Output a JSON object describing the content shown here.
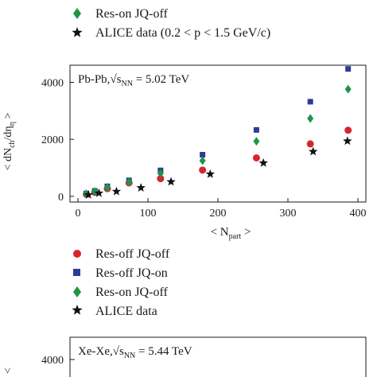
{
  "colors": {
    "res_off_jq_off": "#d7262b",
    "res_off_jq_on": "#2e3c96",
    "res_on_jq_off": "#1e9645",
    "alice": "#111111",
    "axis": "#1a1a1a"
  },
  "top_legend": {
    "items": [
      {
        "label": "Res-on JQ-off",
        "marker": "diamond",
        "color": "#1e9645"
      },
      {
        "label": "ALICE data (0.2 < p < 1.5 GeV/c)",
        "marker": "star",
        "color": "#111111"
      }
    ]
  },
  "panel1": {
    "box_label_system": "Pb-Pb,",
    "box_label_sqrt": "√s",
    "box_label_sub": "NN",
    "box_label_value": " = 5.02 TeV",
    "ylabel_main": "< dN",
    "ylabel_sub1": "ch",
    "ylabel_mid": "/dη",
    "ylabel_sub2": "η",
    "ylabel_end": " >",
    "xlabel_main": "< N",
    "xlabel_sub": "part",
    "xlabel_end": " >"
  },
  "legend2": {
    "items": [
      {
        "label": "Res-off JQ-off",
        "marker": "circle",
        "color": "#d7262b"
      },
      {
        "label": "Res-off JQ-on",
        "marker": "square",
        "color": "#2e3c96"
      },
      {
        "label": "Res-on JQ-off",
        "marker": "diamond",
        "color": "#1e9645"
      },
      {
        "label": "ALICE data",
        "marker": "star",
        "color": "#111111"
      }
    ]
  },
  "panel2": {
    "box_label_system": "Xe-Xe,",
    "box_label_sqrt": "√s",
    "box_label_sub": "NN",
    "box_label_value": " = 5.44 TeV",
    "ytick_label": "4000"
  },
  "chart_data": [
    {
      "type": "scatter",
      "title": "Pb-Pb, √sNN = 5.02 TeV",
      "xlabel": "< Npart >",
      "ylabel": "< dNch/dη >",
      "xlim": [
        0,
        400
      ],
      "ylim": [
        -200,
        4600
      ],
      "xticks": [
        0,
        100,
        200,
        300,
        400
      ],
      "yticks": [
        0,
        2000,
        4000
      ],
      "grid": false,
      "series": [
        {
          "name": "Res-off JQ-off",
          "marker": "circle",
          "x": [
            12,
            24,
            42,
            73,
            118,
            178,
            255,
            332,
            386
          ],
          "y": [
            70,
            140,
            270,
            470,
            620,
            920,
            1350,
            1840,
            2320
          ]
        },
        {
          "name": "Res-off JQ-on",
          "marker": "square",
          "x": [
            12,
            24,
            42,
            73,
            118,
            178,
            255,
            332,
            386
          ],
          "y": [
            100,
            190,
            350,
            560,
            910,
            1460,
            2330,
            3320,
            4470
          ]
        },
        {
          "name": "Res-on JQ-off",
          "marker": "diamond",
          "x": [
            12,
            24,
            42,
            73,
            118,
            178,
            255,
            332,
            386
          ],
          "y": [
            90,
            170,
            310,
            500,
            800,
            1250,
            1930,
            2730,
            3760
          ]
        },
        {
          "name": "ALICE data",
          "marker": "star",
          "x": [
            15,
            30,
            55,
            90,
            133,
            189,
            265,
            336,
            385
          ],
          "y": [
            50,
            110,
            170,
            300,
            510,
            780,
            1170,
            1570,
            1940
          ]
        }
      ]
    },
    {
      "type": "scatter",
      "title": "Xe-Xe, √sNN = 5.44 TeV",
      "ylim": [
        0,
        4000
      ],
      "yticks": [
        4000
      ],
      "series": []
    }
  ]
}
